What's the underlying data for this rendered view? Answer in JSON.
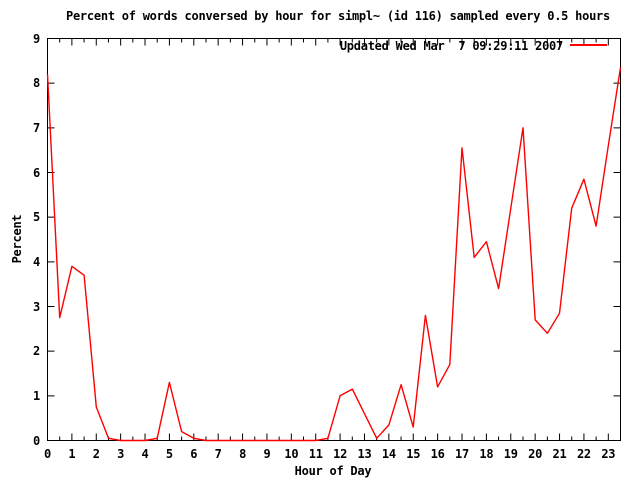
{
  "window": {
    "background": "#ffffff",
    "text_color": "#000000",
    "axis_color": "#000000"
  },
  "chart_data": {
    "type": "line",
    "title": "Percent of words conversed by hour for simpl~ (id 116) sampled every 0.5 hours",
    "xlabel": "Hour of Day",
    "ylabel": "Percent",
    "legend": {
      "label": "Updated Wed Mar  7 09:29:11 2007",
      "position": "top-right-inside",
      "line_color": "#ff0000"
    },
    "xlim": [
      0,
      23.5
    ],
    "ylim": [
      0,
      9
    ],
    "grid": false,
    "sample_interval_hours": 0.5,
    "x_ticklabels": [
      "0",
      "1",
      "2",
      "3",
      "4",
      "5",
      "6",
      "7",
      "8",
      "9",
      "10",
      "11",
      "12",
      "13",
      "14",
      "15",
      "16",
      "17",
      "18",
      "19",
      "20",
      "21",
      "22",
      "23"
    ],
    "y_ticklabels": [
      "0",
      "1",
      "2",
      "3",
      "4",
      "5",
      "6",
      "7",
      "8",
      "9"
    ],
    "series": [
      {
        "name": "Updated Wed Mar  7 09:29:11 2007",
        "color": "#ff0000",
        "x": [
          0,
          0.5,
          1,
          1.5,
          2,
          2.5,
          3,
          3.5,
          4,
          4.5,
          5,
          5.5,
          6,
          6.5,
          7,
          7.5,
          8,
          8.5,
          9,
          9.5,
          10,
          10.5,
          11,
          11.5,
          12,
          12.5,
          13,
          13.5,
          14,
          14.5,
          15,
          15.5,
          16,
          16.5,
          17,
          17.5,
          18,
          18.5,
          19,
          19.5,
          20,
          20.5,
          21,
          21.5,
          22,
          22.5,
          23,
          23.5
        ],
        "values": [
          8.2,
          2.75,
          3.9,
          3.7,
          0.75,
          0.05,
          0,
          0,
          0,
          0.05,
          1.3,
          0.2,
          0.05,
          0,
          0,
          0,
          0,
          0,
          0,
          0,
          0,
          0,
          0,
          0.05,
          1.0,
          1.15,
          0.6,
          0.05,
          0.35,
          1.25,
          0.3,
          2.8,
          1.2,
          1.7,
          6.55,
          4.1,
          4.45,
          3.4,
          5.2,
          7.0,
          2.7,
          2.4,
          2.85,
          5.2,
          5.85,
          4.8,
          6.6,
          8.35
        ]
      }
    ]
  }
}
